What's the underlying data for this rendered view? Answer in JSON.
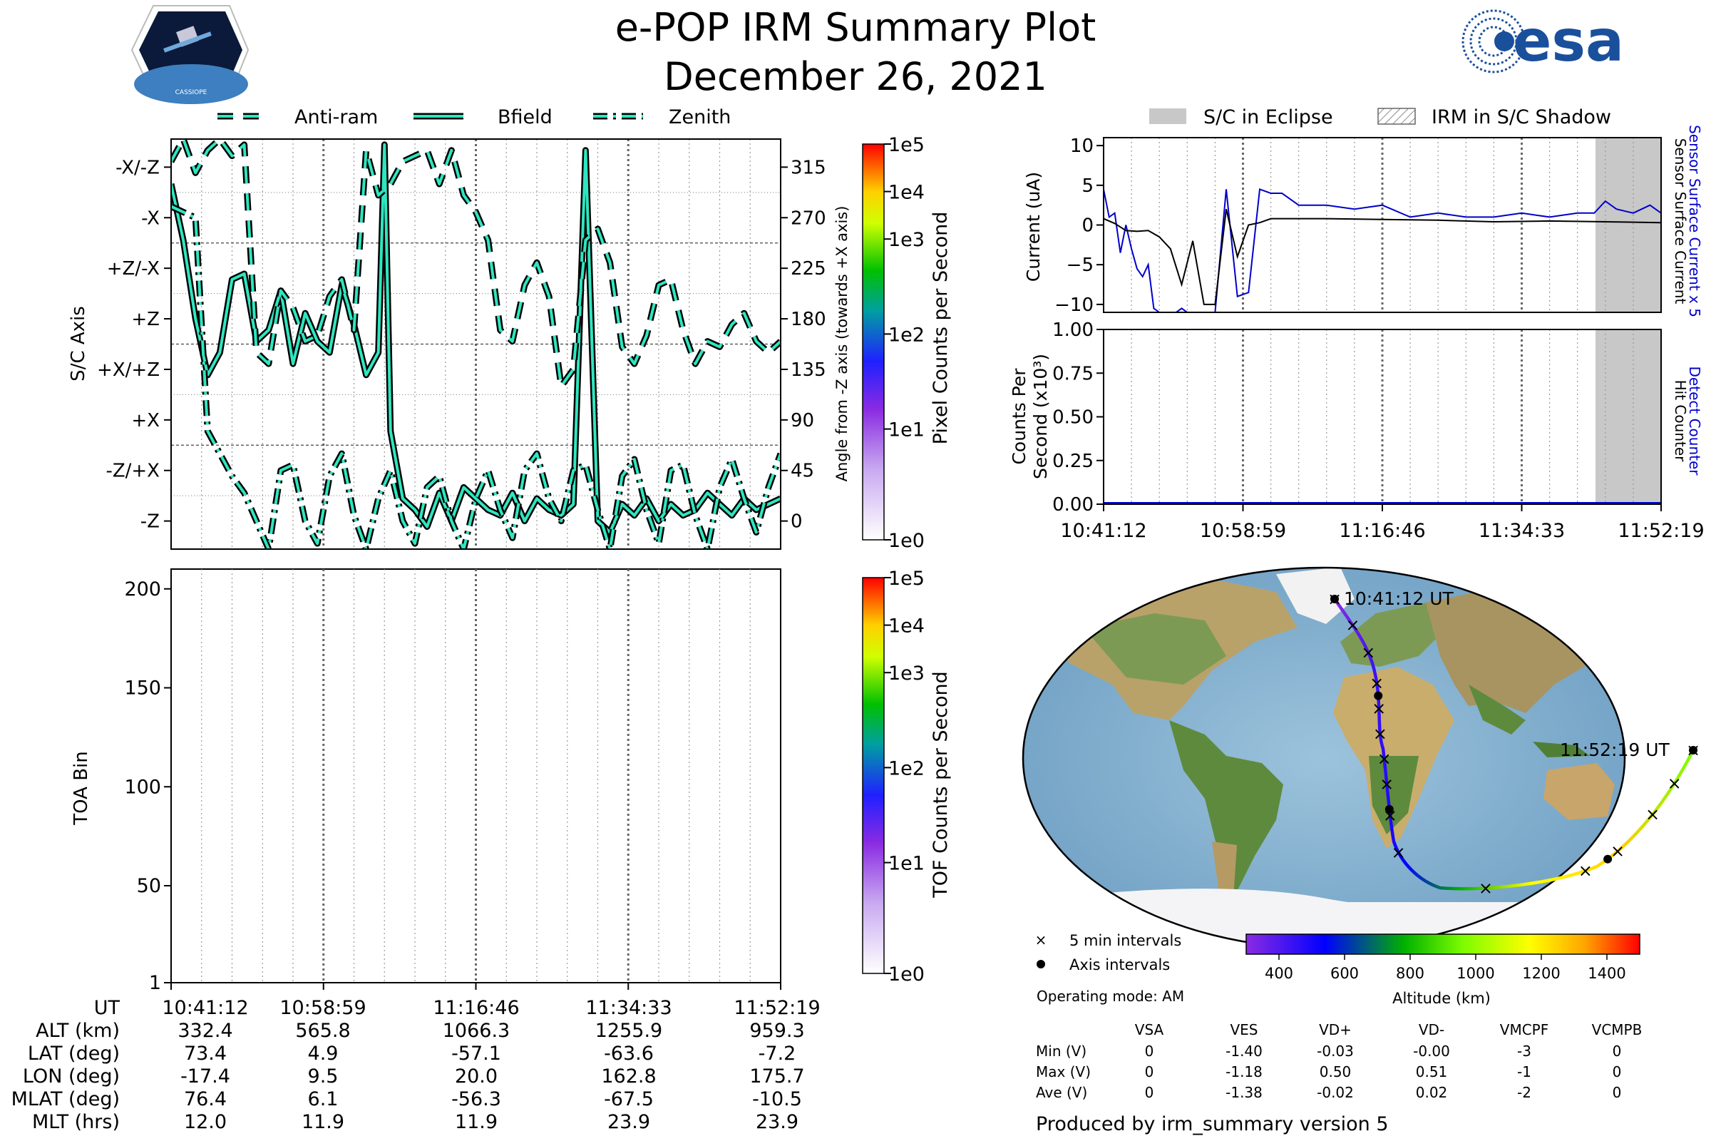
{
  "header": {
    "title": "e-POP IRM Summary Plot",
    "date": "December 26, 2021"
  },
  "legend_top": {
    "items": [
      "Anti-ram",
      "Bfield",
      "Zenith"
    ],
    "eclipse": "S/C in Eclipse",
    "shadow": "IRM in S/C Shadow"
  },
  "colors": {
    "trace_fill": "#2ee6c0",
    "sensor_current": "#0000cc",
    "eclipse": "#c8c8c8",
    "orbit_track": [
      "#8a2be2",
      "#0000ff",
      "#00a000",
      "#7cfc00",
      "#ffff00",
      "#ffa500",
      "#ff0000"
    ]
  },
  "panel_axis": {
    "ylabel": "S/C Axis",
    "left_ticks": [
      "-X/-Z",
      "-X",
      "+Z/-X",
      "+Z",
      "+X/+Z",
      "+X",
      "-Z/+X",
      "-Z"
    ],
    "right_ticks": [
      "315",
      "270",
      "225",
      "180",
      "135",
      "90",
      "45",
      "0"
    ],
    "right_label": "Angle from -Z axis (towards +X axis)",
    "colorbar_label": "Pixel Counts per Second",
    "colorbar_ticks": [
      "1e5",
      "1e4",
      "1e3",
      "1e2",
      "1e1",
      "1e0"
    ]
  },
  "panel_toa": {
    "ylabel": "TOA Bin",
    "yticks": [
      "200",
      "150",
      "100",
      "50",
      "1"
    ],
    "colorbar_label": "TOF Counts per Second",
    "colorbar_ticks": [
      "1e5",
      "1e4",
      "1e3",
      "1e2",
      "1e1",
      "1e0"
    ]
  },
  "panel_current": {
    "ylabel": "Current (uA)",
    "yticks": [
      "10",
      "5",
      "0",
      "−5",
      "−10"
    ],
    "right_label_1": "Sensor Surface Current x 5",
    "right_label_2": "Sensor Surface Current"
  },
  "panel_counts": {
    "ylabel_1": "Counts Per",
    "ylabel_2": "Second (x10³)",
    "yticks": [
      "1.00",
      "0.75",
      "0.50",
      "0.25",
      "0.00"
    ],
    "right_label_1": "Detect Counter",
    "right_label_2": "Hit Counter",
    "xticks": [
      "10:41:12",
      "10:58:59",
      "11:16:46",
      "11:34:33",
      "11:52:19"
    ]
  },
  "map": {
    "start_label": "10:41:12 UT",
    "end_label": "11:52:19 UT",
    "legend_5min": "5 min intervals",
    "legend_axis": "Axis intervals",
    "altitude_label": "Altitude (km)",
    "altitude_ticks": [
      "400",
      "600",
      "800",
      "1000",
      "1200",
      "1400"
    ]
  },
  "ephemeris": {
    "headers": [
      "UT",
      "ALT (km)",
      "LAT (deg)",
      "LON (deg)",
      "MLAT (deg)",
      "MLT (hrs)"
    ],
    "times": [
      "10:41:12",
      "10:58:59",
      "11:16:46",
      "11:34:33",
      "11:52:19"
    ],
    "rows": [
      [
        "332.4",
        "565.8",
        "1066.3",
        "1255.9",
        "959.3"
      ],
      [
        "73.4",
        "4.9",
        "-57.1",
        "-63.6",
        "-7.2"
      ],
      [
        "-17.4",
        "9.5",
        "20.0",
        "162.8",
        "175.7"
      ],
      [
        "76.4",
        "6.1",
        "-56.3",
        "-67.5",
        "-10.5"
      ],
      [
        "12.0",
        "11.9",
        "11.9",
        "23.9",
        "23.9"
      ]
    ]
  },
  "voltages": {
    "mode": "Operating mode: AM",
    "columns": [
      "VSA",
      "VES",
      "VD+",
      "VD-",
      "VMCPF",
      "VCMPB"
    ],
    "rows": [
      {
        "label": "Min (V)",
        "values": [
          "0",
          "-1.40",
          "-0.03",
          "-0.00",
          "-3",
          "0"
        ]
      },
      {
        "label": "Max (V)",
        "values": [
          "0",
          "-1.18",
          "0.50",
          "0.51",
          "-1",
          "0"
        ]
      },
      {
        "label": "Ave (V)",
        "values": [
          "0",
          "-1.38",
          "-0.02",
          "0.02",
          "-2",
          "0"
        ]
      }
    ]
  },
  "footer": "Produced by irm_summary version 5",
  "chart_data": [
    {
      "type": "line",
      "ylabel": "S/C Axis",
      "y_unit": "Angle from -Z axis (towards +X axis)",
      "ylim": [
        -25,
        340
      ],
      "x_range": [
        "10:41:12",
        "11:52:19"
      ],
      "series": [
        {
          "name": "Bfield",
          "x": [
            0,
            0.02,
            0.04,
            0.06,
            0.08,
            0.1,
            0.12,
            0.14,
            0.16,
            0.18,
            0.2,
            0.22,
            0.24,
            0.26,
            0.28,
            0.3,
            0.32,
            0.34,
            0.35,
            0.36,
            0.38,
            0.4,
            0.42,
            0.44,
            0.46,
            0.48,
            0.5,
            0.52,
            0.54,
            0.56,
            0.58,
            0.6,
            0.62,
            0.64,
            0.66,
            0.68,
            0.7,
            0.72,
            0.74,
            0.76,
            0.78,
            0.8,
            0.82,
            0.84,
            0.86,
            0.88,
            0.9,
            0.92,
            0.94,
            0.96,
            0.98,
            1.0
          ],
          "values": [
            300,
            250,
            180,
            130,
            150,
            215,
            220,
            160,
            170,
            205,
            140,
            185,
            160,
            150,
            210,
            175,
            130,
            150,
            335,
            80,
            20,
            10,
            -5,
            25,
            0,
            30,
            20,
            10,
            5,
            25,
            0,
            20,
            10,
            5,
            15,
            330,
            0,
            -10,
            15,
            5,
            20,
            0,
            15,
            5,
            10,
            25,
            15,
            5,
            20,
            10,
            15,
            20
          ]
        },
        {
          "name": "Anti-ram",
          "x": [
            0,
            0.02,
            0.04,
            0.06,
            0.08,
            0.1,
            0.12,
            0.14,
            0.16,
            0.18,
            0.2,
            0.22,
            0.24,
            0.26,
            0.28,
            0.3,
            0.32,
            0.34,
            0.36,
            0.38,
            0.4,
            0.42,
            0.44,
            0.46,
            0.48,
            0.5,
            0.52,
            0.54,
            0.56,
            0.58,
            0.6,
            0.62,
            0.64,
            0.66,
            0.68,
            0.7,
            0.72,
            0.74,
            0.76,
            0.78,
            0.8,
            0.82,
            0.84,
            0.86,
            0.88,
            0.9,
            0.92,
            0.94,
            0.96,
            0.98,
            1.0
          ],
          "values": [
            320,
            340,
            310,
            330,
            340,
            325,
            335,
            150,
            140,
            205,
            190,
            160,
            165,
            200,
            215,
            170,
            330,
            290,
            300,
            320,
            325,
            330,
            300,
            330,
            290,
            275,
            250,
            170,
            160,
            210,
            230,
            200,
            120,
            135,
            250,
            260,
            230,
            155,
            140,
            165,
            210,
            215,
            170,
            140,
            160,
            155,
            175,
            185,
            160,
            150,
            160
          ]
        },
        {
          "name": "Zenith",
          "x": [
            0,
            0.02,
            0.04,
            0.06,
            0.08,
            0.1,
            0.12,
            0.14,
            0.16,
            0.18,
            0.2,
            0.22,
            0.24,
            0.26,
            0.28,
            0.3,
            0.32,
            0.34,
            0.36,
            0.38,
            0.4,
            0.42,
            0.44,
            0.46,
            0.48,
            0.5,
            0.52,
            0.54,
            0.56,
            0.58,
            0.6,
            0.62,
            0.64,
            0.66,
            0.68,
            0.7,
            0.72,
            0.74,
            0.76,
            0.78,
            0.8,
            0.82,
            0.84,
            0.86,
            0.88,
            0.9,
            0.92,
            0.94,
            0.96,
            0.98,
            1.0
          ],
          "values": [
            280,
            275,
            270,
            80,
            60,
            40,
            25,
            0,
            -25,
            45,
            50,
            0,
            -20,
            40,
            60,
            5,
            -25,
            20,
            45,
            0,
            -20,
            30,
            40,
            0,
            -25,
            20,
            45,
            10,
            -15,
            45,
            60,
            20,
            0,
            45,
            50,
            10,
            -25,
            40,
            55,
            10,
            -20,
            45,
            50,
            5,
            -25,
            30,
            55,
            20,
            -10,
            30,
            60
          ]
        }
      ]
    },
    {
      "type": "heatmap",
      "ylabel": "TOA Bin",
      "ylim": [
        1,
        210
      ],
      "x_range": [
        "10:41:12",
        "11:52:19"
      ],
      "values": []
    },
    {
      "type": "line",
      "ylabel": "Current (uA)",
      "ylim": [
        -11,
        11
      ],
      "x_range": [
        "10:41:12",
        "11:52:19"
      ],
      "eclipse_range": [
        0.9,
        1.0
      ],
      "series": [
        {
          "name": "Sensor Surface Current x 5",
          "x": [
            0,
            0.01,
            0.02,
            0.03,
            0.04,
            0.05,
            0.06,
            0.07,
            0.08,
            0.09,
            0.1,
            0.11,
            0.12,
            0.13,
            0.14,
            0.15,
            0.16,
            0.17,
            0.18,
            0.19,
            0.2,
            0.22,
            0.24,
            0.26,
            0.28,
            0.3,
            0.32,
            0.35,
            0.38,
            0.4,
            0.45,
            0.5,
            0.55,
            0.6,
            0.65,
            0.7,
            0.75,
            0.8,
            0.85,
            0.88,
            0.9,
            0.92,
            0.95,
            0.98,
            1.0
          ],
          "values": [
            4.5,
            1,
            1.5,
            -3.5,
            0,
            -3,
            -5.5,
            -6.5,
            -5,
            -10.5,
            -11,
            -11,
            -11,
            -11,
            -10.5,
            -11,
            -11,
            -11,
            -11,
            -11,
            -11,
            4.5,
            -9,
            -8.5,
            4.5,
            4,
            4,
            2.5,
            2.5,
            2.5,
            2,
            2.5,
            1,
            1.5,
            1,
            1,
            1.5,
            1,
            1.5,
            1.5,
            3,
            2,
            1.5,
            2.5,
            1.5
          ]
        },
        {
          "name": "Sensor Surface Current",
          "x": [
            0,
            0.02,
            0.04,
            0.06,
            0.08,
            0.1,
            0.12,
            0.14,
            0.16,
            0.18,
            0.2,
            0.22,
            0.24,
            0.26,
            0.28,
            0.3,
            0.35,
            0.4,
            0.5,
            0.6,
            0.7,
            0.8,
            0.9,
            1.0
          ],
          "values": [
            0.8,
            0.2,
            -0.7,
            -0.8,
            -0.7,
            -1.5,
            -3,
            -7.5,
            -2,
            -10,
            -10,
            2,
            -4,
            0,
            0.3,
            0.8,
            0.8,
            0.8,
            0.7,
            0.6,
            0.4,
            0.5,
            0.4,
            0.3
          ]
        }
      ]
    },
    {
      "type": "line",
      "ylabel": "Counts Per Second (x10³)",
      "ylim": [
        0,
        1.0
      ],
      "x_range": [
        "10:41:12",
        "11:52:19"
      ],
      "eclipse_range": [
        0.9,
        1.0
      ],
      "series": [
        {
          "name": "Detect Counter",
          "x": [
            0,
            1
          ],
          "values": [
            0,
            0
          ]
        },
        {
          "name": "Hit Counter",
          "x": [
            0,
            1
          ],
          "values": [
            0,
            0
          ]
        }
      ]
    },
    {
      "type": "scatter",
      "ylabel": "",
      "xlabel": "",
      "note": "Orbit ground track over world map, longitude/latitude in degrees",
      "x": [
        -17.4,
        -8,
        -5,
        -3,
        -1,
        2,
        5,
        7,
        9.5,
        12,
        15,
        18,
        20,
        30,
        50,
        80,
        110,
        140,
        162.8,
        166,
        170,
        175.7
      ],
      "y": [
        73.4,
        62,
        50,
        38,
        28,
        20,
        10,
        5,
        4.9,
        -10,
        -25,
        -40,
        -57.1,
        -64,
        -67,
        -69,
        -68,
        -66,
        -63.6,
        -52,
        -38,
        -7.2
      ]
    }
  ]
}
